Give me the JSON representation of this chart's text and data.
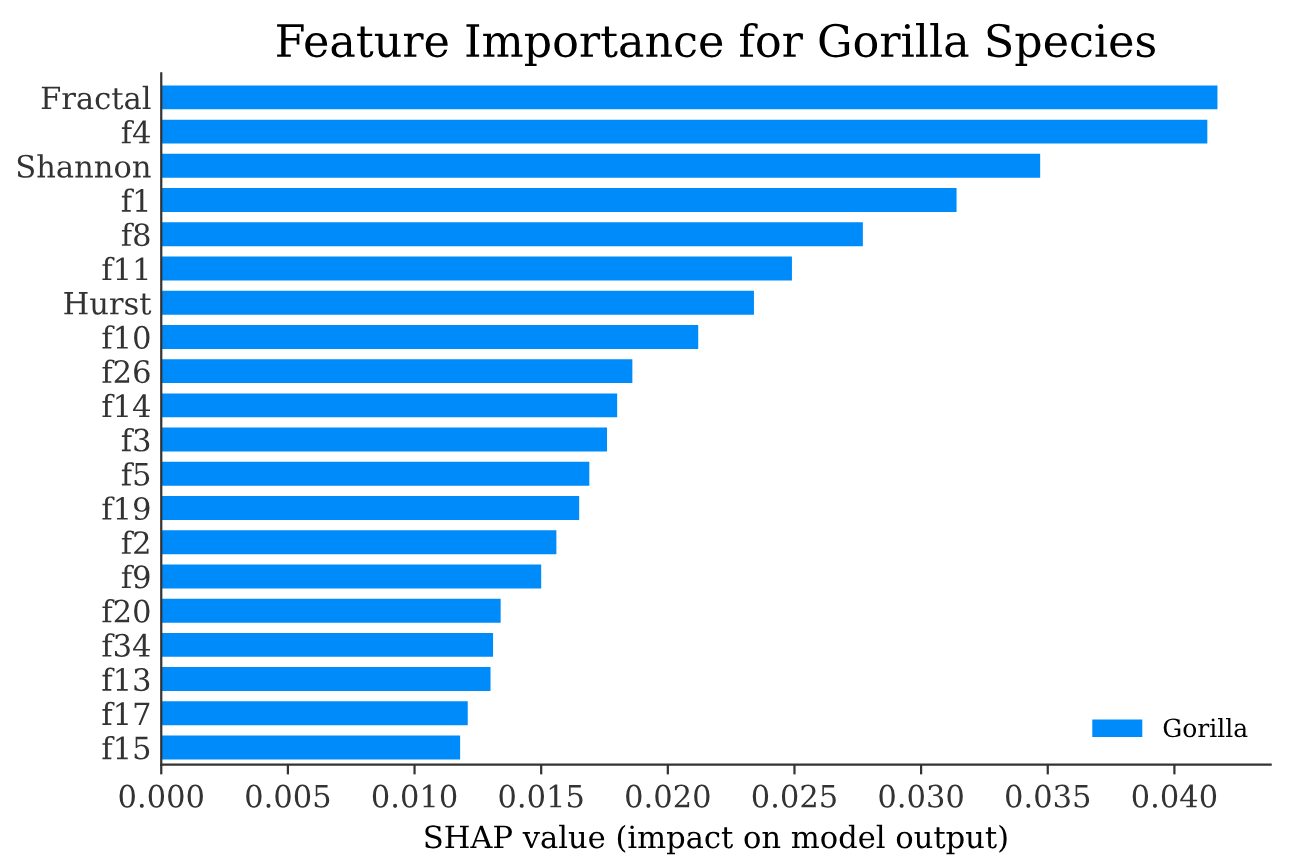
{
  "chart_data": {
    "type": "bar",
    "orientation": "horizontal",
    "title": "Feature Importance for Gorilla Species",
    "xlabel": "SHAP value (impact on model output)",
    "categories": [
      "Fractal",
      "f4",
      "Shannon",
      "f1",
      "f8",
      "f11",
      "Hurst",
      "f10",
      "f26",
      "f14",
      "f3",
      "f5",
      "f19",
      "f2",
      "f9",
      "f20",
      "f34",
      "f13",
      "f17",
      "f15"
    ],
    "series": [
      {
        "name": "Gorilla",
        "color": "#008bfb",
        "values": [
          0.0417,
          0.0413,
          0.0347,
          0.0314,
          0.0277,
          0.0249,
          0.0234,
          0.0212,
          0.0186,
          0.018,
          0.0176,
          0.0169,
          0.0165,
          0.0156,
          0.015,
          0.0134,
          0.0131,
          0.013,
          0.0121,
          0.0118
        ]
      }
    ],
    "xlim": [
      0,
      0.0438
    ],
    "xticks": [
      {
        "value": 0,
        "label": "0.000"
      },
      {
        "value": 0.005,
        "label": "0.005"
      },
      {
        "value": 0.01,
        "label": "0.010"
      },
      {
        "value": 0.015,
        "label": "0.015"
      },
      {
        "value": 0.02,
        "label": "0.020"
      },
      {
        "value": 0.025,
        "label": "0.025"
      },
      {
        "value": 0.03,
        "label": "0.030"
      },
      {
        "value": 0.035,
        "label": "0.035"
      },
      {
        "value": 0.04,
        "label": "0.040"
      }
    ],
    "grid": false,
    "legend": "bottom right"
  }
}
